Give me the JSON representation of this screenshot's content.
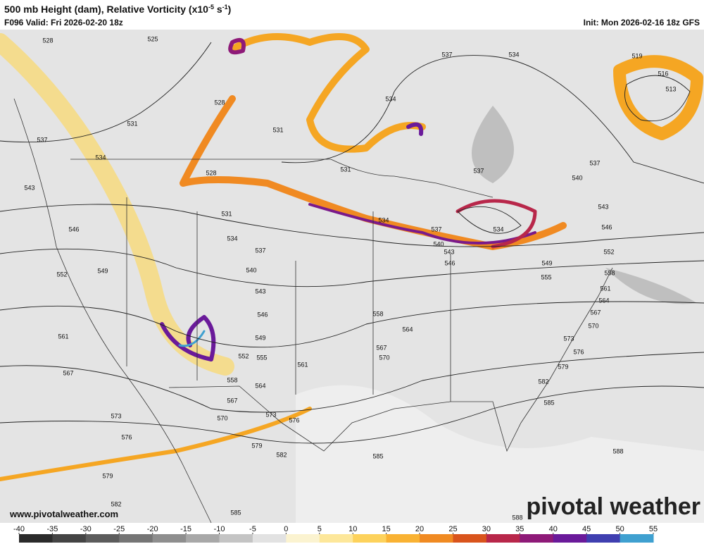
{
  "header": {
    "title_parts": [
      "500 mb Height (dam), Relative Vorticity (x10",
      "-5",
      " s",
      "-1",
      ")"
    ],
    "valid": "F096 Valid: Fri 2026-02-20 18z",
    "init": "Init: Mon 2026-02-16 18z GFS"
  },
  "map": {
    "contour_labels": [
      528,
      525,
      531,
      537,
      534,
      543,
      546,
      552,
      549,
      561,
      567,
      573,
      576,
      579,
      582,
      585,
      588,
      585,
      582,
      579,
      576,
      573,
      570,
      567,
      564,
      558,
      555,
      552,
      549,
      546,
      543,
      540,
      537,
      534,
      531,
      528,
      528,
      531,
      534,
      537,
      534,
      531,
      534,
      537,
      540,
      543,
      546,
      537,
      540,
      543,
      546,
      552,
      558,
      561,
      564,
      567,
      570,
      573,
      576,
      579,
      582,
      585,
      588,
      558,
      564,
      567,
      570,
      561,
      549,
      555,
      519,
      516,
      513,
      537,
      534
    ]
  },
  "colorbar": {
    "ticks": [
      -40,
      -35,
      -30,
      -25,
      -20,
      -15,
      -10,
      -5,
      0,
      5,
      10,
      15,
      20,
      25,
      30,
      35,
      40,
      45,
      50,
      55
    ],
    "colors": [
      "#2b2b2b",
      "#444444",
      "#5c5c5c",
      "#757575",
      "#8e8e8e",
      "#a8a8a8",
      "#c4c4c4",
      "#e2e2e2",
      "#fbf3d0",
      "#fde79a",
      "#fdd25c",
      "#f9b233",
      "#f08a22",
      "#d9541c",
      "#b8274a",
      "#8e1a78",
      "#6a1a9a",
      "#3f3fb0",
      "#3fa0d0"
    ]
  },
  "footer": {
    "website": "www.pivotalweather.com",
    "logo": "pivotal weather"
  }
}
